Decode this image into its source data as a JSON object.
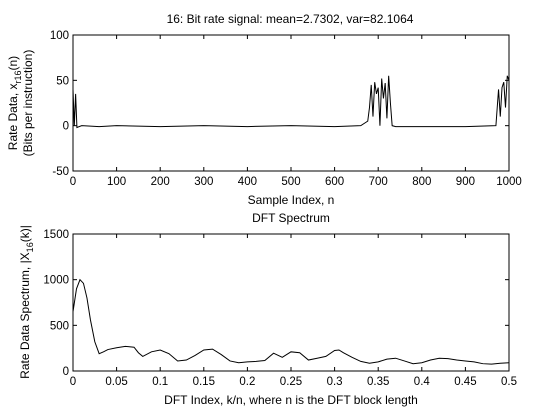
{
  "chart_data": [
    {
      "type": "line",
      "title": "16: Bit rate signal: mean=2.7302, var=82.1064",
      "xlabel": "Sample Index, n",
      "ylabel_line1": "Rate Data, x",
      "ylabel_sub": "r16",
      "ylabel_tail": "(n)",
      "ylabel_line2": "(Bits per instruction)",
      "xlim": [
        0,
        1000
      ],
      "ylim": [
        -50,
        100
      ],
      "xticks": [
        "0",
        "100",
        "200",
        "300",
        "400",
        "500",
        "600",
        "700",
        "800",
        "900",
        "1000"
      ],
      "yticks": [
        "-50",
        "0",
        "50",
        "100"
      ],
      "series": [
        {
          "x": [
            0,
            3,
            6,
            9,
            20,
            60,
            100,
            200,
            300,
            400,
            500,
            600,
            660,
            676,
            680,
            684,
            688,
            692,
            696,
            700,
            704,
            708,
            712,
            716,
            720,
            724,
            728,
            732,
            740,
            800,
            900,
            970,
            976,
            980,
            984,
            988,
            992,
            996,
            1000
          ],
          "y": [
            40,
            0,
            35,
            -2,
            0,
            -1,
            0,
            -1,
            0,
            -1,
            0,
            -1,
            0,
            5,
            20,
            45,
            10,
            48,
            35,
            42,
            0,
            52,
            30,
            47,
            8,
            55,
            25,
            0,
            -1,
            -1,
            -1,
            0,
            40,
            10,
            42,
            48,
            20,
            55,
            50
          ]
        }
      ]
    },
    {
      "type": "line",
      "title": "DFT Spectrum",
      "xlabel": "DFT Index, k/n, where n is the DFT block length",
      "ylabel_pre": "Rate Data Spectrum, |X",
      "ylabel_sub": "16",
      "ylabel_tail": "(k)|",
      "xlim": [
        0,
        0.5
      ],
      "ylim": [
        0,
        1500
      ],
      "xticks": [
        "0",
        "0.05",
        "0.1",
        "0.15",
        "0.2",
        "0.25",
        "0.3",
        "0.35",
        "0.4",
        "0.45",
        "0.5"
      ],
      "yticks": [
        "0",
        "500",
        "1000",
        "1500"
      ],
      "series": [
        {
          "x": [
            0,
            0.004,
            0.008,
            0.012,
            0.016,
            0.02,
            0.025,
            0.03,
            0.035,
            0.04,
            0.05,
            0.06,
            0.07,
            0.075,
            0.08,
            0.09,
            0.1,
            0.11,
            0.12,
            0.13,
            0.14,
            0.15,
            0.16,
            0.17,
            0.18,
            0.19,
            0.2,
            0.21,
            0.22,
            0.23,
            0.24,
            0.25,
            0.26,
            0.27,
            0.28,
            0.29,
            0.3,
            0.305,
            0.31,
            0.32,
            0.33,
            0.34,
            0.35,
            0.36,
            0.37,
            0.38,
            0.39,
            0.4,
            0.41,
            0.42,
            0.43,
            0.44,
            0.45,
            0.46,
            0.47,
            0.48,
            0.49,
            0.5
          ],
          "y": [
            650,
            900,
            1000,
            960,
            800,
            560,
            320,
            190,
            210,
            235,
            255,
            270,
            260,
            200,
            160,
            210,
            230,
            190,
            110,
            120,
            170,
            230,
            240,
            180,
            110,
            90,
            100,
            105,
            115,
            195,
            150,
            210,
            200,
            120,
            140,
            160,
            225,
            230,
            200,
            150,
            105,
            85,
            100,
            130,
            140,
            110,
            80,
            90,
            120,
            140,
            135,
            120,
            110,
            100,
            80,
            75,
            85,
            90
          ]
        }
      ]
    }
  ]
}
